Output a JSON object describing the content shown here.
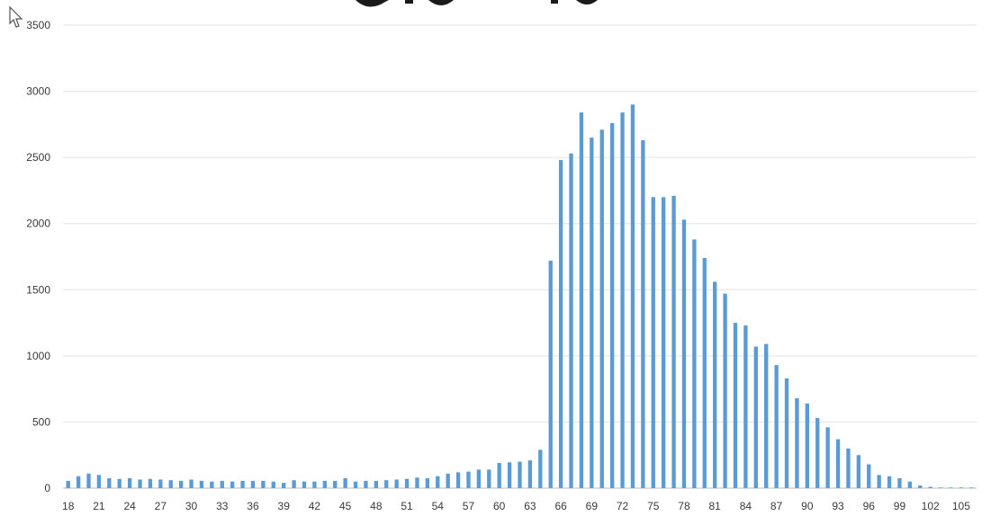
{
  "chart_data": {
    "type": "bar",
    "x": [
      18,
      19,
      20,
      21,
      22,
      23,
      24,
      25,
      26,
      27,
      28,
      29,
      30,
      31,
      32,
      33,
      34,
      35,
      36,
      37,
      38,
      39,
      40,
      41,
      42,
      43,
      44,
      45,
      46,
      47,
      48,
      49,
      50,
      51,
      52,
      53,
      54,
      55,
      56,
      57,
      58,
      59,
      60,
      61,
      62,
      63,
      64,
      65,
      66,
      67,
      68,
      69,
      70,
      71,
      72,
      73,
      74,
      75,
      76,
      77,
      78,
      79,
      80,
      81,
      82,
      83,
      84,
      85,
      86,
      87,
      88,
      89,
      90,
      91,
      92,
      93,
      94,
      95,
      96,
      97,
      98,
      99,
      100,
      101,
      102,
      103,
      104,
      105,
      106
    ],
    "values": [
      55,
      90,
      110,
      100,
      75,
      70,
      75,
      65,
      70,
      65,
      60,
      55,
      65,
      55,
      50,
      55,
      50,
      55,
      55,
      55,
      50,
      40,
      60,
      50,
      50,
      55,
      55,
      75,
      50,
      55,
      55,
      60,
      65,
      70,
      80,
      75,
      90,
      110,
      120,
      125,
      140,
      140,
      190,
      195,
      200,
      210,
      290,
      1720,
      2480,
      2530,
      2840,
      2650,
      2710,
      2760,
      2840,
      2900,
      2630,
      2200,
      2200,
      2210,
      2030,
      1880,
      1740,
      1560,
      1470,
      1250,
      1230,
      1070,
      1090,
      930,
      830,
      680,
      640,
      530,
      460,
      370,
      300,
      250,
      180,
      100,
      90,
      75,
      50,
      20,
      10,
      5,
      5,
      5,
      5
    ],
    "xticks": [
      "18",
      "21",
      "24",
      "27",
      "30",
      "33",
      "36",
      "39",
      "42",
      "45",
      "48",
      "51",
      "54",
      "57",
      "60",
      "63",
      "66",
      "69",
      "72",
      "75",
      "78",
      "81",
      "84",
      "87",
      "90",
      "93",
      "96",
      "99",
      "102",
      "105"
    ],
    "yticks": [
      "0",
      "500",
      "1000",
      "1500",
      "2000",
      "2500",
      "3000",
      "3500"
    ],
    "ylim": [
      0,
      3500
    ],
    "grid": true,
    "color": "#5b9bd5"
  }
}
